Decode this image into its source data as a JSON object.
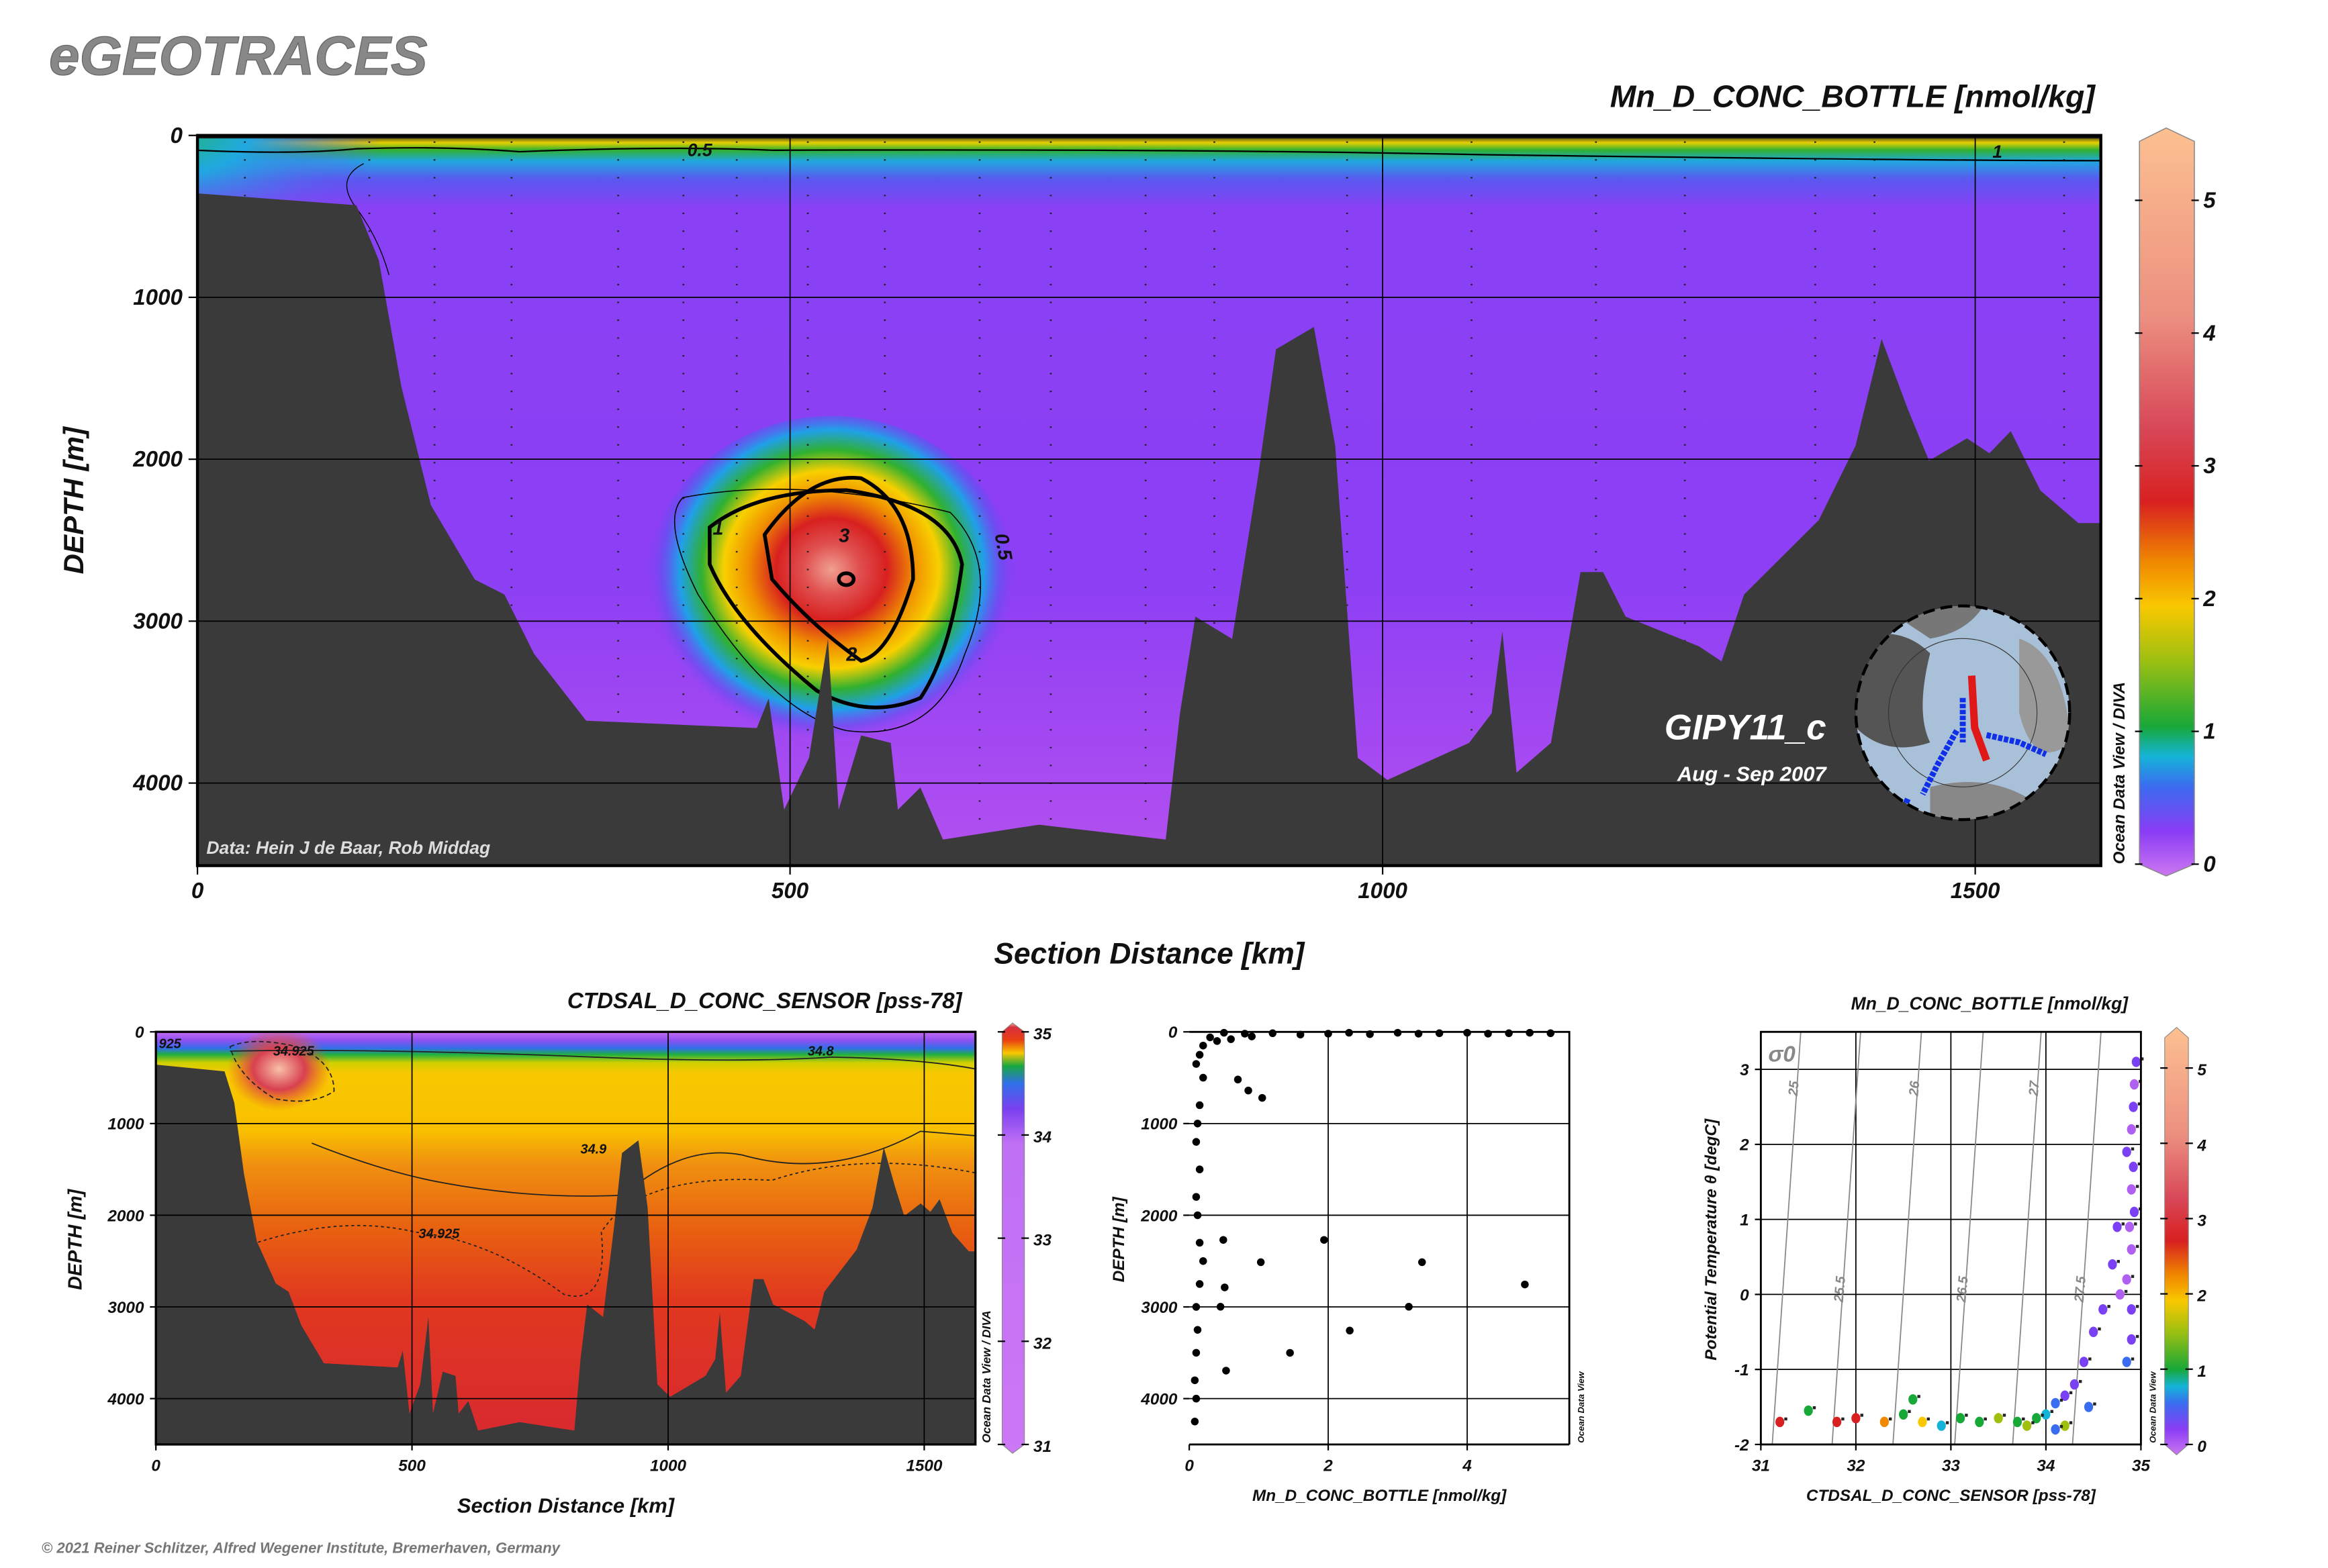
{
  "brand": "eGEOTRACES",
  "copyright": "© 2021 Reiner Schlitzer, Alfred Wegener Institute, Bremerhaven, Germany",
  "main": {
    "title": "Mn_D_CONC_BOTTLE [nmol/kg]",
    "ylabel": "DEPTH [m]",
    "xlabel": "Section Distance [km]",
    "cruise": "GIPY11_c",
    "dates": "Aug - Sep 2007",
    "credit": "Data: Hein J de Baar, Rob Middag",
    "odv": "Ocean Data View / DIVA"
  },
  "salinity": {
    "title": "CTDSAL_D_CONC_SENSOR [pss-78]",
    "ylabel": "DEPTH [m]",
    "xlabel": "Section Distance [km]",
    "odv": "Ocean Data View / DIVA"
  },
  "profile": {
    "ylabel": "DEPTH [m]",
    "xlabel": "Mn_D_CONC_BOTTLE [nmol/kg]",
    "odv": "Ocean Data View"
  },
  "ts": {
    "title": "Mn_D_CONC_BOTTLE [nmol/kg]",
    "ylabel": "Potential Temperature θ [degC]",
    "xlabel": "CTDSAL_D_CONC_SENSOR [pss-78]",
    "sigma_label": "σ0",
    "odv": "Ocean Data View"
  },
  "chart_data": [
    {
      "type": "heatmap",
      "title": "Mn_D_CONC_BOTTLE [nmol/kg]",
      "xlabel": "Section Distance [km]",
      "ylabel": "DEPTH [m]",
      "xlim": [
        0,
        1606
      ],
      "ylim": [
        4510,
        0
      ],
      "xticks": [
        "0",
        "500",
        "1000",
        "1500"
      ],
      "yticks": [
        "0",
        "1000",
        "2000",
        "3000",
        "4000"
      ],
      "grid": true,
      "colorbar": {
        "min": 0,
        "max": 5.5,
        "ticks": [
          "0",
          "1",
          "2",
          "3",
          "4",
          "5"
        ]
      },
      "contour_labels": [
        "0.5",
        "1",
        "2",
        "3",
        "0.5",
        "1"
      ],
      "max_location": {
        "distance_km": 545,
        "depth_m": 2750,
        "value": 5
      },
      "bathymetry": [
        [
          0,
          358
        ],
        [
          134,
          431
        ],
        [
          153,
          771
        ],
        [
          172,
          1550
        ],
        [
          197,
          2284
        ],
        [
          234,
          2743
        ],
        [
          259,
          2835
        ],
        [
          284,
          3202
        ],
        [
          328,
          3615
        ],
        [
          472,
          3660
        ],
        [
          482,
          3477
        ],
        [
          495,
          4165
        ],
        [
          516,
          3844
        ],
        [
          532,
          3110
        ],
        [
          541,
          4165
        ],
        [
          560,
          3706
        ],
        [
          585,
          3752
        ],
        [
          591,
          4165
        ],
        [
          610,
          4027
        ],
        [
          629,
          4349
        ],
        [
          710,
          4257
        ],
        [
          817,
          4349
        ],
        [
          829,
          3569
        ],
        [
          842,
          2972
        ],
        [
          873,
          3110
        ],
        [
          895,
          2101
        ],
        [
          910,
          1321
        ],
        [
          942,
          1183
        ],
        [
          960,
          1917
        ],
        [
          979,
          3844
        ],
        [
          1004,
          3981
        ],
        [
          1073,
          3752
        ],
        [
          1092,
          3569
        ],
        [
          1101,
          3064
        ],
        [
          1113,
          3936
        ],
        [
          1142,
          3752
        ],
        [
          1167,
          2697
        ],
        [
          1186,
          2697
        ],
        [
          1205,
          2972
        ],
        [
          1267,
          3156
        ],
        [
          1286,
          3248
        ],
        [
          1305,
          2835
        ],
        [
          1368,
          2376
        ],
        [
          1399,
          1917
        ],
        [
          1421,
          1257
        ],
        [
          1443,
          1688
        ],
        [
          1461,
          2009
        ],
        [
          1493,
          1871
        ],
        [
          1512,
          1963
        ],
        [
          1530,
          1826
        ],
        [
          1555,
          2193
        ],
        [
          1587,
          2394
        ],
        [
          1606,
          2394
        ]
      ]
    },
    {
      "type": "heatmap",
      "title": "CTDSAL_D_CONC_SENSOR [pss-78]",
      "xlabel": "Section Distance [km]",
      "ylabel": "DEPTH [m]",
      "xlim": [
        0,
        1600
      ],
      "ylim": [
        4500,
        0
      ],
      "xticks": [
        "0",
        "500",
        "1000",
        "1500"
      ],
      "yticks": [
        "0",
        "1000",
        "2000",
        "3000",
        "4000"
      ],
      "colorbar": {
        "min": 31,
        "max": 35,
        "ticks": [
          "31",
          "32",
          "33",
          "34",
          "35"
        ]
      },
      "contour_labels": [
        "925",
        "34.925",
        "34.8",
        "34.9",
        "34.925"
      ]
    },
    {
      "type": "scatter",
      "xlabel": "Mn_D_CONC_BOTTLE [nmol/kg]",
      "ylabel": "DEPTH [m]",
      "xlim": [
        0,
        5.47
      ],
      "ylim": [
        4500,
        0
      ],
      "xticks": [
        "0",
        "2",
        "4"
      ],
      "yticks": [
        "0",
        "1000",
        "2000",
        "3000",
        "4000"
      ],
      "points": [
        [
          0.5,
          10
        ],
        [
          0.8,
          20
        ],
        [
          1.2,
          15
        ],
        [
          1.6,
          30
        ],
        [
          2.0,
          20
        ],
        [
          2.3,
          10
        ],
        [
          2.6,
          25
        ],
        [
          3.0,
          10
        ],
        [
          3.3,
          20
        ],
        [
          3.6,
          15
        ],
        [
          4.0,
          10
        ],
        [
          4.3,
          20
        ],
        [
          4.6,
          15
        ],
        [
          4.9,
          10
        ],
        [
          5.2,
          15
        ],
        [
          0.3,
          60
        ],
        [
          0.4,
          100
        ],
        [
          0.6,
          80
        ],
        [
          0.9,
          50
        ],
        [
          0.2,
          150
        ],
        [
          0.15,
          250
        ],
        [
          0.1,
          350
        ],
        [
          0.7,
          520
        ],
        [
          0.85,
          640
        ],
        [
          1.05,
          720
        ],
        [
          0.2,
          500
        ],
        [
          0.15,
          800
        ],
        [
          0.12,
          1000
        ],
        [
          0.1,
          1200
        ],
        [
          0.15,
          1500
        ],
        [
          0.1,
          1800
        ],
        [
          0.12,
          2000
        ],
        [
          0.49,
          2269
        ],
        [
          1.94,
          2269
        ],
        [
          0.15,
          2300
        ],
        [
          1.03,
          2512
        ],
        [
          3.35,
          2512
        ],
        [
          0.2,
          2500
        ],
        [
          0.51,
          2787
        ],
        [
          4.83,
          2755
        ],
        [
          0.15,
          2750
        ],
        [
          0.45,
          2998
        ],
        [
          3.16,
          2998
        ],
        [
          0.1,
          3000
        ],
        [
          2.31,
          3258
        ],
        [
          0.12,
          3250
        ],
        [
          1.45,
          3501
        ],
        [
          0.1,
          3500
        ],
        [
          0.53,
          3695
        ],
        [
          0.08,
          3800
        ],
        [
          0.1,
          4000
        ],
        [
          0.08,
          4250
        ]
      ]
    },
    {
      "type": "scatter",
      "title": "Mn_D_CONC_BOTTLE [nmol/kg]",
      "xlabel": "CTDSAL_D_CONC_SENSOR [pss-78]",
      "ylabel": "Potential Temperature θ [degC]",
      "xlim": [
        31,
        35
      ],
      "ylim": [
        -2,
        3.5
      ],
      "xticks": [
        "31",
        "32",
        "33",
        "34",
        "35"
      ],
      "yticks": [
        "-2",
        "-1",
        "0",
        "1",
        "2",
        "3"
      ],
      "colorbar": {
        "min": 0,
        "max": 5.5,
        "ticks": [
          "0",
          "1",
          "2",
          "3",
          "4",
          "5"
        ]
      },
      "isopycnals": [
        {
          "label": "25",
          "s_top": 31.42
        },
        {
          "label": "25.5",
          "s_top": 32.05
        },
        {
          "label": "26",
          "s_top": 32.69
        },
        {
          "label": "26.5",
          "s_top": 33.34
        },
        {
          "label": "27",
          "s_top": 33.95
        },
        {
          "label": "27.5",
          "s_top": 34.58
        }
      ],
      "points": [
        [
          34.95,
          3.1,
          0.3
        ],
        [
          34.93,
          2.8,
          0.25
        ],
        [
          34.92,
          2.5,
          0.3
        ],
        [
          34.9,
          2.2,
          0.2
        ],
        [
          34.85,
          1.9,
          0.35
        ],
        [
          34.92,
          1.7,
          0.3
        ],
        [
          34.9,
          1.4,
          0.25
        ],
        [
          34.93,
          1.1,
          0.3
        ],
        [
          34.88,
          0.9,
          0.2
        ],
        [
          34.9,
          0.6,
          0.25
        ],
        [
          34.75,
          0.9,
          0.3
        ],
        [
          34.7,
          0.4,
          0.4
        ],
        [
          34.85,
          0.2,
          0.2
        ],
        [
          34.78,
          0.0,
          0.25
        ],
        [
          34.9,
          -0.2,
          0.3
        ],
        [
          34.6,
          -0.2,
          0.5
        ],
        [
          34.5,
          -0.5,
          0.4
        ],
        [
          34.9,
          -0.6,
          0.3
        ],
        [
          34.4,
          -0.9,
          0.35
        ],
        [
          34.85,
          -0.9,
          0.7
        ],
        [
          34.3,
          -1.2,
          0.4
        ],
        [
          34.2,
          -1.35,
          0.5
        ],
        [
          34.1,
          -1.45,
          0.6
        ],
        [
          34.45,
          -1.5,
          0.8
        ],
        [
          34.0,
          -1.6,
          0.9
        ],
        [
          33.9,
          -1.65,
          1.2
        ],
        [
          33.7,
          -1.7,
          1.5
        ],
        [
          33.5,
          -1.65,
          1.8
        ],
        [
          33.3,
          -1.7,
          1.1
        ],
        [
          33.1,
          -1.65,
          1.4
        ],
        [
          32.9,
          -1.75,
          1.0
        ],
        [
          32.7,
          -1.7,
          2.2
        ],
        [
          32.5,
          -1.6,
          1.3
        ],
        [
          32.3,
          -1.7,
          2.5
        ],
        [
          32.0,
          -1.65,
          2.8
        ],
        [
          31.8,
          -1.7,
          3.0
        ],
        [
          31.5,
          -1.55,
          1.2
        ],
        [
          31.2,
          -1.7,
          2.8
        ],
        [
          34.2,
          -1.75,
          1.6
        ],
        [
          34.1,
          -1.8,
          0.8
        ],
        [
          33.8,
          -1.75,
          1.9
        ],
        [
          32.6,
          -1.4,
          1.2
        ]
      ]
    }
  ]
}
